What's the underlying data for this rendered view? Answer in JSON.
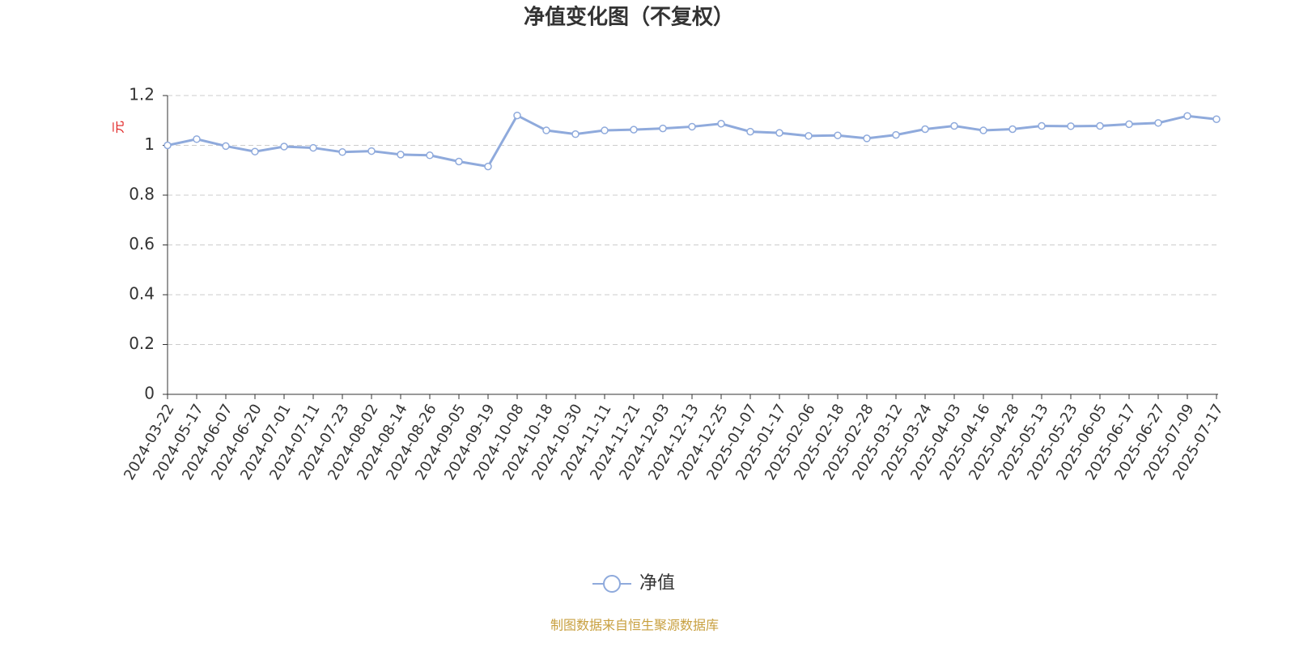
{
  "chart_data": {
    "type": "line",
    "title": "净值变化图（不复权）",
    "y_label": "元",
    "source": "制图数据来自恒生聚源数据库",
    "categories": [
      "2024-03-22",
      "2024-05-17",
      "2024-06-07",
      "2024-06-20",
      "2024-07-01",
      "2024-07-11",
      "2024-07-23",
      "2024-08-02",
      "2024-08-14",
      "2024-08-26",
      "2024-09-05",
      "2024-09-19",
      "2024-10-08",
      "2024-10-18",
      "2024-10-30",
      "2024-11-11",
      "2024-11-21",
      "2024-12-03",
      "2024-12-13",
      "2024-12-25",
      "2025-01-07",
      "2025-01-17",
      "2025-02-06",
      "2025-02-18",
      "2025-02-28",
      "2025-03-12",
      "2025-03-24",
      "2025-04-03",
      "2025-04-16",
      "2025-04-28",
      "2025-05-13",
      "2025-05-23",
      "2025-06-05",
      "2025-06-17",
      "2025-06-27",
      "2025-07-09",
      "2025-07-17"
    ],
    "series": [
      {
        "name": "净值",
        "color": "#8faadc",
        "values": [
          1.0,
          1.025,
          0.997,
          0.975,
          0.995,
          0.99,
          0.973,
          0.977,
          0.963,
          0.96,
          0.935,
          0.915,
          1.12,
          1.06,
          1.045,
          1.06,
          1.063,
          1.068,
          1.075,
          1.087,
          1.055,
          1.05,
          1.038,
          1.04,
          1.028,
          1.042,
          1.065,
          1.078,
          1.06,
          1.065,
          1.078,
          1.077,
          1.078,
          1.085,
          1.09,
          1.118,
          1.105
        ]
      }
    ],
    "ylim": [
      0,
      1.2
    ],
    "yticks": [
      0,
      0.2,
      0.4,
      0.6,
      0.8,
      1,
      1.2
    ],
    "grid": true,
    "legend": "bottom"
  }
}
